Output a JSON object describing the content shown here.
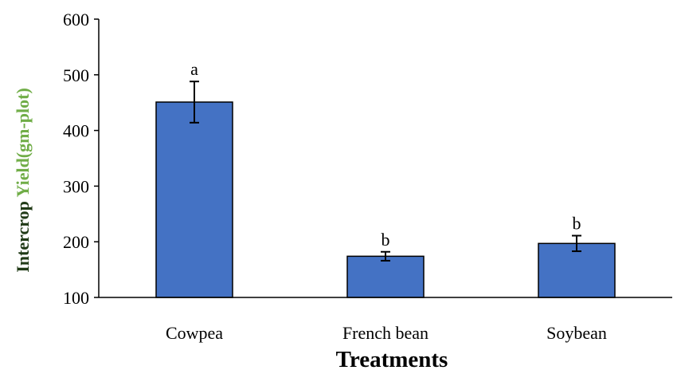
{
  "chart_data": {
    "type": "bar",
    "categories": [
      "Cowpea",
      "French bean",
      "Soybean"
    ],
    "values": [
      451,
      174,
      197
    ],
    "error": [
      37,
      8,
      14
    ],
    "significance_letters": [
      "a",
      "b",
      "b"
    ],
    "xlabel": "Treatments",
    "ylabel_parts": [
      "Intercrop ",
      "Yield(gm-plot)"
    ],
    "ylim": [
      100,
      600
    ],
    "yticks": [
      100,
      200,
      300,
      400,
      500,
      600
    ],
    "grid": false,
    "colors": {
      "bar_fill": "#4472C4",
      "bar_stroke": "#000000",
      "axis": "#000000",
      "ylabel_dark": "#203A16",
      "ylabel_green": "#70AD47"
    }
  }
}
